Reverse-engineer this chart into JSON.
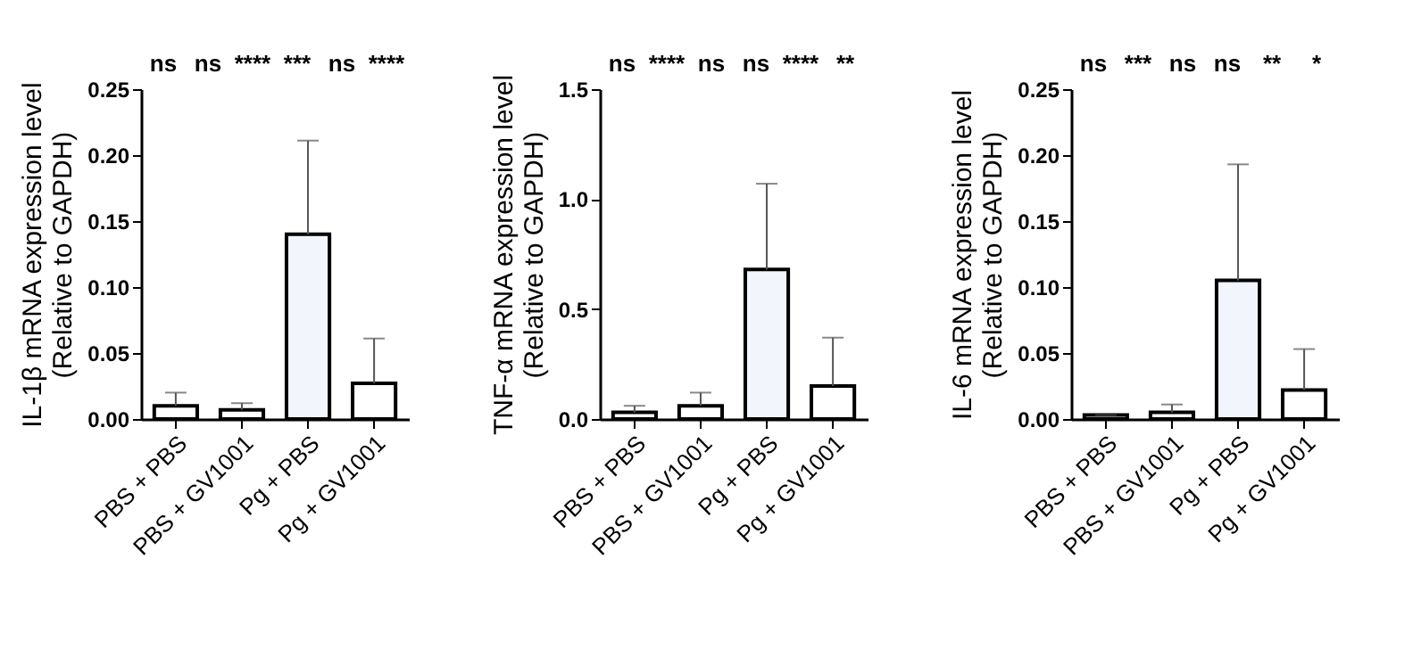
{
  "chart_data": [
    {
      "type": "bar",
      "ylabel": "IL-1β mRNA expression level\n(Relative to GAPDH)",
      "categories": [
        "PBS + PBS",
        "PBS + GV1001",
        "Pg + PBS",
        "Pg + GV1001"
      ],
      "values": [
        0.01,
        0.007,
        0.14,
        0.027
      ],
      "colors": [
        "#ffffff",
        "#ffffff",
        "#f2f5fc",
        "#ffffff"
      ],
      "errors": [
        [
          0.01,
          0.02
        ],
        [
          0.007,
          0.012
        ],
        [
          0.14,
          0.211
        ],
        [
          0.027,
          0.061
        ]
      ],
      "ylim": [
        0,
        0.25
      ],
      "yticks": [
        {
          "value": 0,
          "label": "0.00"
        },
        {
          "value": 0.05,
          "label": "0.05"
        },
        {
          "value": 0.1,
          "label": "0.10"
        },
        {
          "value": 0.15,
          "label": "0.15"
        },
        {
          "value": 0.2,
          "label": "0.20"
        },
        {
          "value": 0.25,
          "label": "0.25"
        }
      ],
      "grid": false,
      "annotations": [
        "ns",
        "ns",
        "****",
        "***",
        "ns",
        "****"
      ]
    },
    {
      "type": "bar",
      "ylabel": "TNF-α mRNA expression level\n(Relative to GAPDH)",
      "categories": [
        "PBS + PBS",
        "PBS + GV1001",
        "Pg + PBS",
        "Pg + GV1001"
      ],
      "values": [
        0.03,
        0.06,
        0.68,
        0.15
      ],
      "colors": [
        "#ffffff",
        "#ffffff",
        "#f2f5fc",
        "#ffffff"
      ],
      "errors": [
        [
          0.03,
          0.06
        ],
        [
          0.06,
          0.12
        ],
        [
          0.68,
          1.07
        ],
        [
          0.15,
          0.37
        ]
      ],
      "ylim": [
        0,
        1.5
      ],
      "yticks": [
        {
          "value": 0,
          "label": "0.0"
        },
        0.5,
        {
          "value": 1,
          "label": "1.0"
        },
        1.5
      ],
      "grid": false,
      "annotations": [
        "ns",
        "****",
        "ns",
        "ns",
        "****",
        "**"
      ]
    },
    {
      "type": "bar",
      "ylabel": "IL-6 mRNA expression level\n(Relative to GAPDH)",
      "categories": [
        "PBS + PBS",
        "PBS + GV1001",
        "Pg + PBS",
        "Pg + GV1001"
      ],
      "values": [
        0.003,
        0.005,
        0.105,
        0.022
      ],
      "colors": [
        "#ffffff",
        "#ffffff",
        "#f2f5fc",
        "#ffffff"
      ],
      "errors": [
        [
          0.003,
          0.003
        ],
        [
          0.005,
          0.011
        ],
        [
          0.105,
          0.193
        ],
        [
          0.022,
          0.053
        ]
      ],
      "ylim": [
        0,
        0.25
      ],
      "yticks": [
        {
          "value": 0,
          "label": "0.00"
        },
        {
          "value": 0.05,
          "label": "0.05"
        },
        {
          "value": 0.1,
          "label": "0.10"
        },
        {
          "value": 0.15,
          "label": "0.15"
        },
        {
          "value": 0.2,
          "label": "0.20"
        },
        {
          "value": 0.25,
          "label": "0.25"
        }
      ],
      "grid": false,
      "annotations": [
        "ns",
        "***",
        "ns",
        "ns",
        "**",
        "*"
      ]
    }
  ]
}
